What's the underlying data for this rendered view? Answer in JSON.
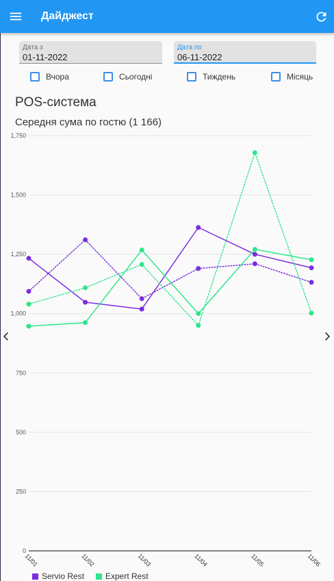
{
  "app_bar": {
    "title": "Дайджест",
    "menu_icon": "menu-icon",
    "refresh_icon": "refresh-icon",
    "color": "#2196F3"
  },
  "date_range": {
    "from": {
      "label": "Дата з",
      "value": "01-11-2022"
    },
    "to": {
      "label": "Дата по",
      "value": "06-11-2022"
    }
  },
  "period_options": [
    {
      "label": "Вчора",
      "checked": false
    },
    {
      "label": "Сьогодні",
      "checked": false
    },
    {
      "label": "Тиждень",
      "checked": false
    },
    {
      "label": "Місяць",
      "checked": false
    }
  ],
  "section_title": "POS-система",
  "navigation": {
    "prev_icon": "chevron-left-icon",
    "next_icon": "chevron-right-icon"
  },
  "chart_data": {
    "type": "line",
    "title": "Середня сума по гостю (1 166)",
    "categories": [
      "11/01",
      "11/02",
      "11/03",
      "11/04",
      "11/05",
      "11/06"
    ],
    "ylim": [
      0,
      1750
    ],
    "yticks": [
      0,
      250,
      500,
      750,
      1000,
      1250,
      1500,
      1750
    ],
    "ytick_labels": [
      "0",
      "250",
      "500",
      "750",
      "1,000",
      "1,250",
      "1,500",
      "1,750"
    ],
    "grid": true,
    "legend_position": "bottom-left",
    "legend": [
      {
        "label": "Servio Rest",
        "color": "#7a2ee0"
      },
      {
        "label": "Expert Rest",
        "color": "#2ee68a"
      }
    ],
    "series": [
      {
        "legend": 0,
        "dotted": false,
        "values": [
          1233,
          1048,
          1019,
          1363,
          1250,
          1193
        ]
      },
      {
        "legend": 0,
        "dotted": true,
        "values": [
          1094,
          1311,
          1063,
          1190,
          1210,
          1132
        ]
      },
      {
        "legend": 1,
        "dotted": false,
        "values": [
          947,
          962,
          1268,
          1000,
          1271,
          1227
        ]
      },
      {
        "legend": 1,
        "dotted": true,
        "values": [
          1040,
          1109,
          1207,
          950,
          1678,
          1002
        ]
      }
    ]
  }
}
